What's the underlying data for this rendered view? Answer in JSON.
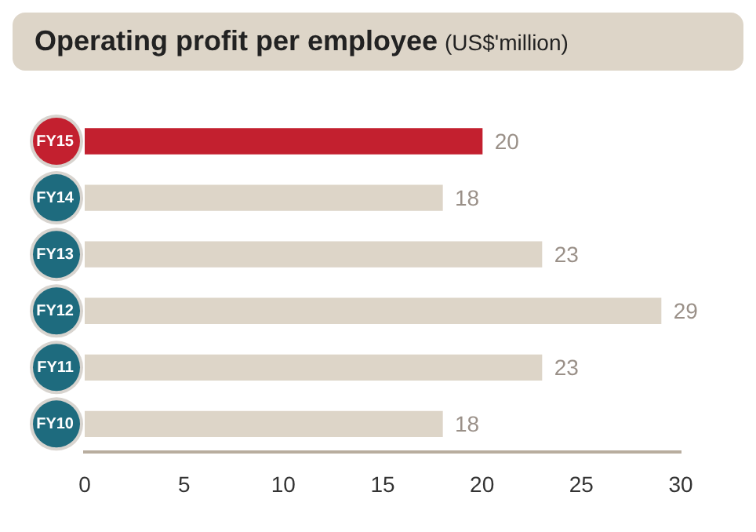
{
  "chart_data": {
    "type": "bar",
    "orientation": "horizontal",
    "title": "Operating profit per employee",
    "subtitle": "(US$'million)",
    "categories": [
      "FY15",
      "FY14",
      "FY13",
      "FY12",
      "FY11",
      "FY10"
    ],
    "values": [
      20,
      18,
      23,
      29,
      23,
      18
    ],
    "colors": [
      "#c3202f",
      "#ddd5c8",
      "#ddd5c8",
      "#ddd5c8",
      "#ddd5c8",
      "#ddd5c8"
    ],
    "xlim": [
      0,
      30
    ],
    "xticks": [
      0,
      5,
      10,
      15,
      20,
      25,
      30
    ],
    "grid": false,
    "legend": false,
    "data_labels": true
  }
}
